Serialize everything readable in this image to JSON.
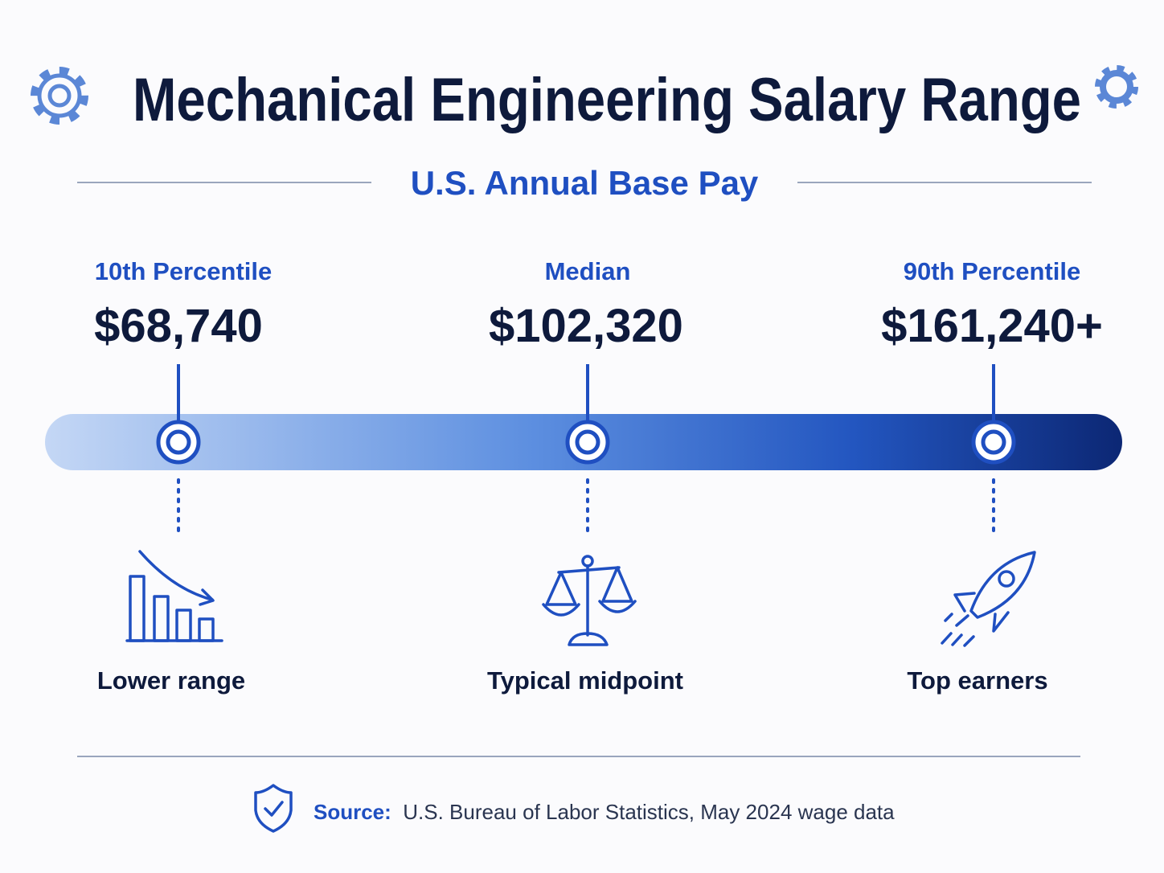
{
  "title": "Mechanical Engineering Salary Range",
  "subtitle": "U.S. Annual Base Pay",
  "markers": [
    {
      "label": "10th Percentile",
      "value": "$68,740",
      "caption": "Lower range"
    },
    {
      "label": "Median",
      "value": "$102,320",
      "caption": "Typical midpoint"
    },
    {
      "label": "90th Percentile",
      "value": "$161,240+",
      "caption": "Top earners"
    }
  ],
  "source": {
    "label": "Source:",
    "text": "U.S. Bureau of Labor Statistics, May 2024 wage data"
  }
}
